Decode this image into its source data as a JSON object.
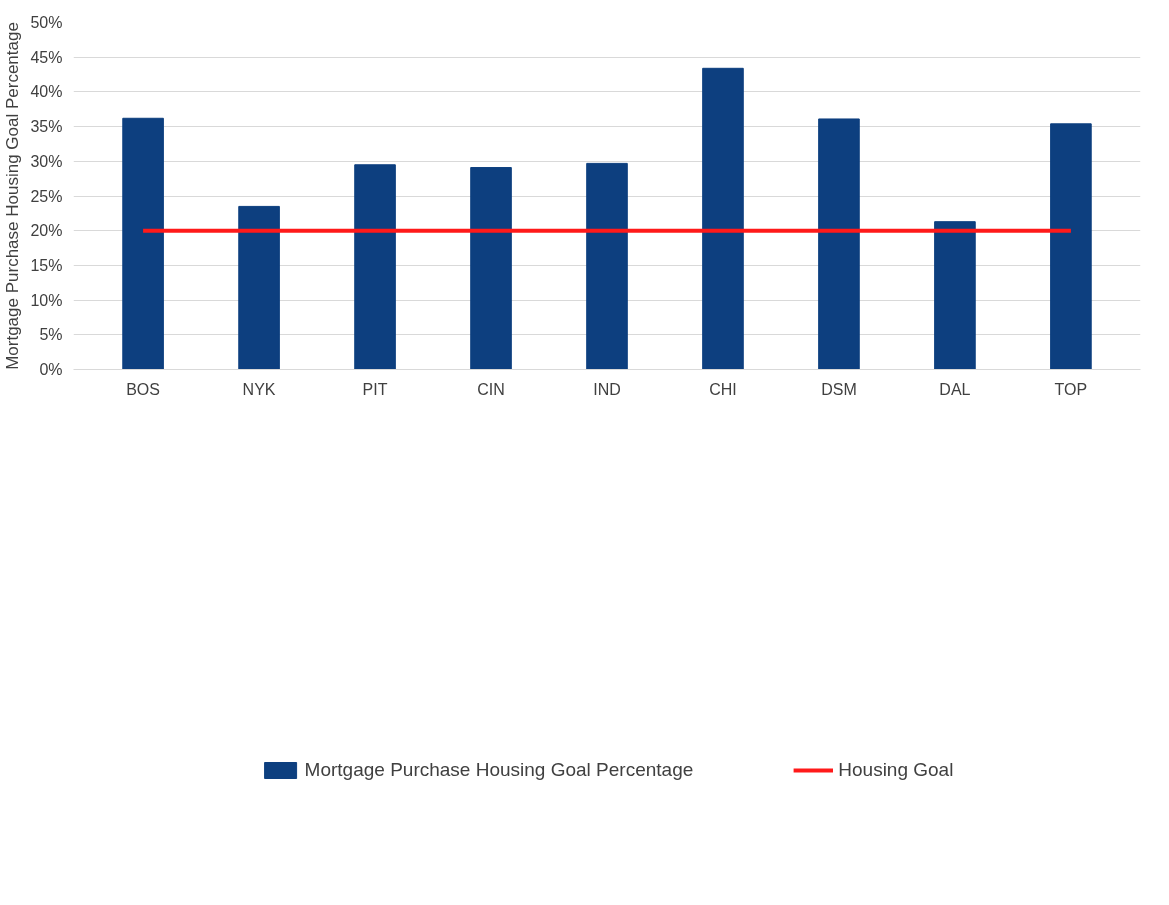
{
  "chart_data": {
    "type": "bar",
    "ylabel": "Mortgage Purchase Housing Goal Percentage",
    "categories": [
      "BOS",
      "NYK",
      "PIT",
      "CIN",
      "IND",
      "CHI",
      "DSM",
      "DAL",
      "TOP"
    ],
    "series": [
      {
        "name": "Mortgage Purchase Housing Goal Percentage",
        "color": "#0d3f7f",
        "values": [
          36.2,
          23.5,
          29.5,
          29.1,
          29.7,
          43.4,
          36.1,
          21.3,
          35.4
        ]
      },
      {
        "name": "Housing Goal",
        "type": "line",
        "color": "#ff1a1a",
        "values": [
          20,
          20,
          20,
          20,
          20,
          20,
          20,
          20,
          20
        ]
      }
    ],
    "ylim": [
      0,
      50
    ],
    "yticks": [
      {
        "value": 0,
        "label": "0%"
      },
      {
        "value": 5,
        "label": "5%"
      },
      {
        "value": 10,
        "label": "10%"
      },
      {
        "value": 15,
        "label": "15%"
      },
      {
        "value": 20,
        "label": "20%"
      },
      {
        "value": 25,
        "label": "25%"
      },
      {
        "value": 30,
        "label": "30%"
      },
      {
        "value": 35,
        "label": "35%"
      },
      {
        "value": 40,
        "label": "40%"
      },
      {
        "value": 45,
        "label": "45%"
      },
      {
        "value": 50,
        "label": "50%"
      }
    ],
    "grid": "y",
    "legend": "bottom",
    "line_style": "solid",
    "marker": "none"
  }
}
